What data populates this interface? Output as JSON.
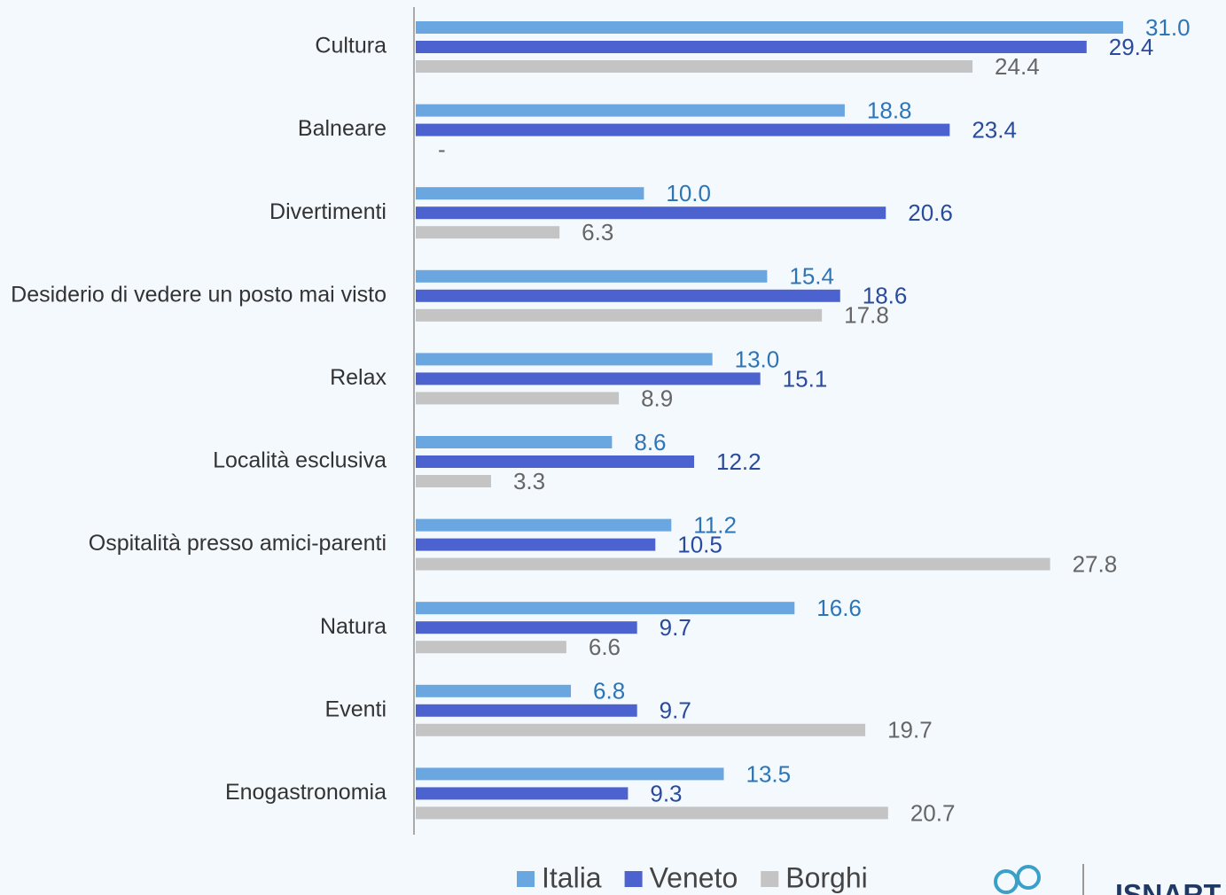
{
  "chart_data": {
    "type": "bar",
    "orientation": "horizontal",
    "categories": [
      "Cultura",
      "Balneare",
      "Divertimenti",
      "Desiderio di vedere un posto mai visto",
      "Relax",
      "Località esclusiva",
      "Ospitalità presso amici-parenti",
      "Natura",
      "Eventi",
      "Enogastronomia"
    ],
    "series": [
      {
        "name": "Italia",
        "color": "#6aa6e0",
        "label_color": "#2e75b6",
        "values": [
          31.0,
          18.8,
          10.0,
          15.4,
          13.0,
          8.6,
          11.2,
          16.6,
          6.8,
          13.5
        ],
        "value_labels": [
          "31.0",
          "18.8",
          "10.0",
          "15.4",
          "13.0",
          "8.6",
          "11.2",
          "16.6",
          "6.8",
          "13.5"
        ]
      },
      {
        "name": "Veneto",
        "color": "#4b62cf",
        "label_color": "#2a4a9c",
        "values": [
          29.4,
          23.4,
          20.6,
          18.6,
          15.1,
          12.2,
          10.5,
          9.7,
          9.7,
          9.3
        ],
        "value_labels": [
          "29.4",
          "23.4",
          "20.6",
          "18.6",
          "15.1",
          "12.2",
          "10.5",
          "9.7",
          "9.7",
          "9.3"
        ]
      },
      {
        "name": "Borghi",
        "color": "#c4c4c4",
        "label_color": "#666666",
        "values": [
          24.4,
          null,
          6.3,
          17.8,
          8.9,
          3.3,
          27.8,
          6.6,
          19.7,
          20.7
        ],
        "value_labels": [
          "24.4",
          "-",
          "6.3",
          "17.8",
          "8.9",
          "3.3",
          "27.8",
          "6.6",
          "19.7",
          "20.7"
        ]
      }
    ],
    "logo": "ISNART"
  }
}
